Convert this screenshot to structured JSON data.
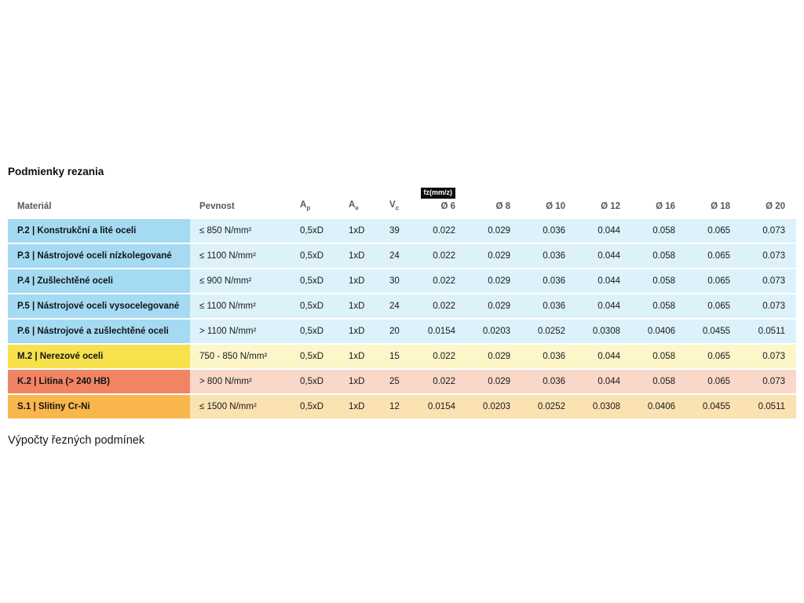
{
  "page": {
    "title": "Podmienky rezania",
    "footer_link": "Výpočty řezných podmínek"
  },
  "table": {
    "fz_badge": "fz(mm/z)",
    "headers": {
      "material": "Materiál",
      "pevnost": "Pevnost",
      "ap": {
        "base": "A",
        "sub": "p"
      },
      "ae": {
        "base": "A",
        "sub": "e"
      },
      "vc": {
        "base": "V",
        "sub": "c"
      },
      "diameters": [
        "Ø 6",
        "Ø 8",
        "Ø 10",
        "Ø 12",
        "Ø 16",
        "Ø 18",
        "Ø 20"
      ]
    },
    "rows": [
      {
        "theme": "blue",
        "material": "P.2 | Konstrukční a lité oceli",
        "pevnost": "≤ 850 N/mm²",
        "ap": "0,5xD",
        "ae": "1xD",
        "vc": "39",
        "values": [
          "0.022",
          "0.029",
          "0.036",
          "0.044",
          "0.058",
          "0.065",
          "0.073"
        ]
      },
      {
        "theme": "blue",
        "material": "P.3 | Nástrojové oceli nízkolegované",
        "pevnost": "≤ 1100 N/mm²",
        "ap": "0,5xD",
        "ae": "1xD",
        "vc": "24",
        "values": [
          "0.022",
          "0.029",
          "0.036",
          "0.044",
          "0.058",
          "0.065",
          "0.073"
        ]
      },
      {
        "theme": "blue",
        "material": "P.4 | Zušlechtěné oceli",
        "pevnost": "≤ 900 N/mm²",
        "ap": "0,5xD",
        "ae": "1xD",
        "vc": "30",
        "values": [
          "0.022",
          "0.029",
          "0.036",
          "0.044",
          "0.058",
          "0.065",
          "0.073"
        ]
      },
      {
        "theme": "blue",
        "material": "P.5 | Nástrojové oceli vysocelegované",
        "pevnost": "≤ 1100 N/mm²",
        "ap": "0,5xD",
        "ae": "1xD",
        "vc": "24",
        "values": [
          "0.022",
          "0.029",
          "0.036",
          "0.044",
          "0.058",
          "0.065",
          "0.073"
        ]
      },
      {
        "theme": "blue",
        "material": "P.6 | Nástrojové a zušlechtěné oceli",
        "pevnost": "> 1100 N/mm²",
        "ap": "0,5xD",
        "ae": "1xD",
        "vc": "20",
        "values": [
          "0.0154",
          "0.0203",
          "0.0252",
          "0.0308",
          "0.0406",
          "0.0455",
          "0.0511"
        ]
      },
      {
        "theme": "yellow",
        "material": "M.2 | Nerezové oceli",
        "pevnost": "750 - 850 N/mm²",
        "ap": "0,5xD",
        "ae": "1xD",
        "vc": "15",
        "values": [
          "0.022",
          "0.029",
          "0.036",
          "0.044",
          "0.058",
          "0.065",
          "0.073"
        ]
      },
      {
        "theme": "red",
        "material": "K.2 | Litina (> 240 HB)",
        "pevnost": "> 800 N/mm²",
        "ap": "0,5xD",
        "ae": "1xD",
        "vc": "25",
        "values": [
          "0.022",
          "0.029",
          "0.036",
          "0.044",
          "0.058",
          "0.065",
          "0.073"
        ]
      },
      {
        "theme": "orange",
        "material": "S.1 | Slitiny Cr-Ni",
        "pevnost": "≤ 1500 N/mm²",
        "ap": "0,5xD",
        "ae": "1xD",
        "vc": "12",
        "values": [
          "0.0154",
          "0.0203",
          "0.0252",
          "0.0308",
          "0.0406",
          "0.0455",
          "0.0511"
        ]
      }
    ]
  }
}
